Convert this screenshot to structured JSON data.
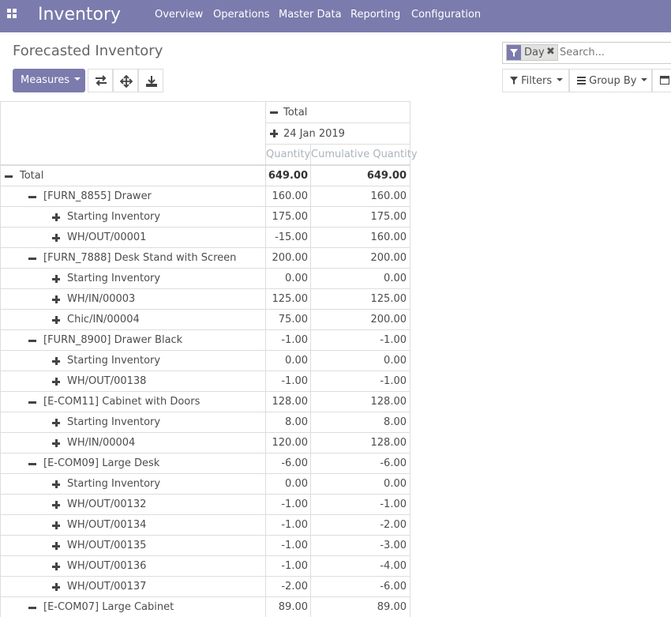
{
  "navbar": {
    "app_title": "Inventory",
    "menu": [
      "Overview",
      "Operations",
      "Master Data",
      "Reporting",
      "Configuration"
    ],
    "bg_color": "#7c7bad"
  },
  "control_panel": {
    "title": "Forecasted Inventory",
    "measures_label": "Measures",
    "toolbar_icons": [
      "swap-axes-icon",
      "expand-all-icon",
      "download-icon"
    ],
    "search": {
      "facet_label": "Day",
      "facet_icon": "filter-icon",
      "placeholder": "Search..."
    },
    "filters_label": "Filters",
    "group_by_label": "Group By",
    "calendar_icon": "calendar-icon"
  },
  "pivot": {
    "col_total": "Total",
    "col_date": "24 Jan 2019",
    "measures": [
      "Quantity",
      "Cumulative Quantity"
    ],
    "rows": [
      {
        "label": "Total",
        "level": 0,
        "icon": "minus",
        "qty": "649.00",
        "cum": "649.00",
        "bold": true
      },
      {
        "label": "[FURN_8855] Drawer",
        "level": 1,
        "icon": "minus",
        "qty": "160.00",
        "cum": "160.00"
      },
      {
        "label": "Starting Inventory",
        "level": 2,
        "icon": "plus",
        "qty": "175.00",
        "cum": "175.00"
      },
      {
        "label": "WH/OUT/00001",
        "level": 2,
        "icon": "plus",
        "qty": "-15.00",
        "cum": "160.00"
      },
      {
        "label": "[FURN_7888] Desk Stand with Screen",
        "level": 1,
        "icon": "minus",
        "qty": "200.00",
        "cum": "200.00"
      },
      {
        "label": "Starting Inventory",
        "level": 2,
        "icon": "plus",
        "qty": "0.00",
        "cum": "0.00"
      },
      {
        "label": "WH/IN/00003",
        "level": 2,
        "icon": "plus",
        "qty": "125.00",
        "cum": "125.00"
      },
      {
        "label": "Chic/IN/00004",
        "level": 2,
        "icon": "plus",
        "qty": "75.00",
        "cum": "200.00"
      },
      {
        "label": "[FURN_8900] Drawer Black",
        "level": 1,
        "icon": "minus",
        "qty": "-1.00",
        "cum": "-1.00"
      },
      {
        "label": "Starting Inventory",
        "level": 2,
        "icon": "plus",
        "qty": "0.00",
        "cum": "0.00"
      },
      {
        "label": "WH/OUT/00138",
        "level": 2,
        "icon": "plus",
        "qty": "-1.00",
        "cum": "-1.00"
      },
      {
        "label": "[E-COM11] Cabinet with Doors",
        "level": 1,
        "icon": "minus",
        "qty": "128.00",
        "cum": "128.00"
      },
      {
        "label": "Starting Inventory",
        "level": 2,
        "icon": "plus",
        "qty": "8.00",
        "cum": "8.00"
      },
      {
        "label": "WH/IN/00004",
        "level": 2,
        "icon": "plus",
        "qty": "120.00",
        "cum": "128.00"
      },
      {
        "label": "[E-COM09] Large Desk",
        "level": 1,
        "icon": "minus",
        "qty": "-6.00",
        "cum": "-6.00"
      },
      {
        "label": "Starting Inventory",
        "level": 2,
        "icon": "plus",
        "qty": "0.00",
        "cum": "0.00"
      },
      {
        "label": "WH/OUT/00132",
        "level": 2,
        "icon": "plus",
        "qty": "-1.00",
        "cum": "-1.00"
      },
      {
        "label": "WH/OUT/00134",
        "level": 2,
        "icon": "plus",
        "qty": "-1.00",
        "cum": "-2.00"
      },
      {
        "label": "WH/OUT/00135",
        "level": 2,
        "icon": "plus",
        "qty": "-1.00",
        "cum": "-3.00"
      },
      {
        "label": "WH/OUT/00136",
        "level": 2,
        "icon": "plus",
        "qty": "-1.00",
        "cum": "-4.00"
      },
      {
        "label": "WH/OUT/00137",
        "level": 2,
        "icon": "plus",
        "qty": "-2.00",
        "cum": "-6.00"
      },
      {
        "label": "[E-COM07] Large Cabinet",
        "level": 1,
        "icon": "minus",
        "qty": "89.00",
        "cum": "89.00"
      }
    ]
  }
}
